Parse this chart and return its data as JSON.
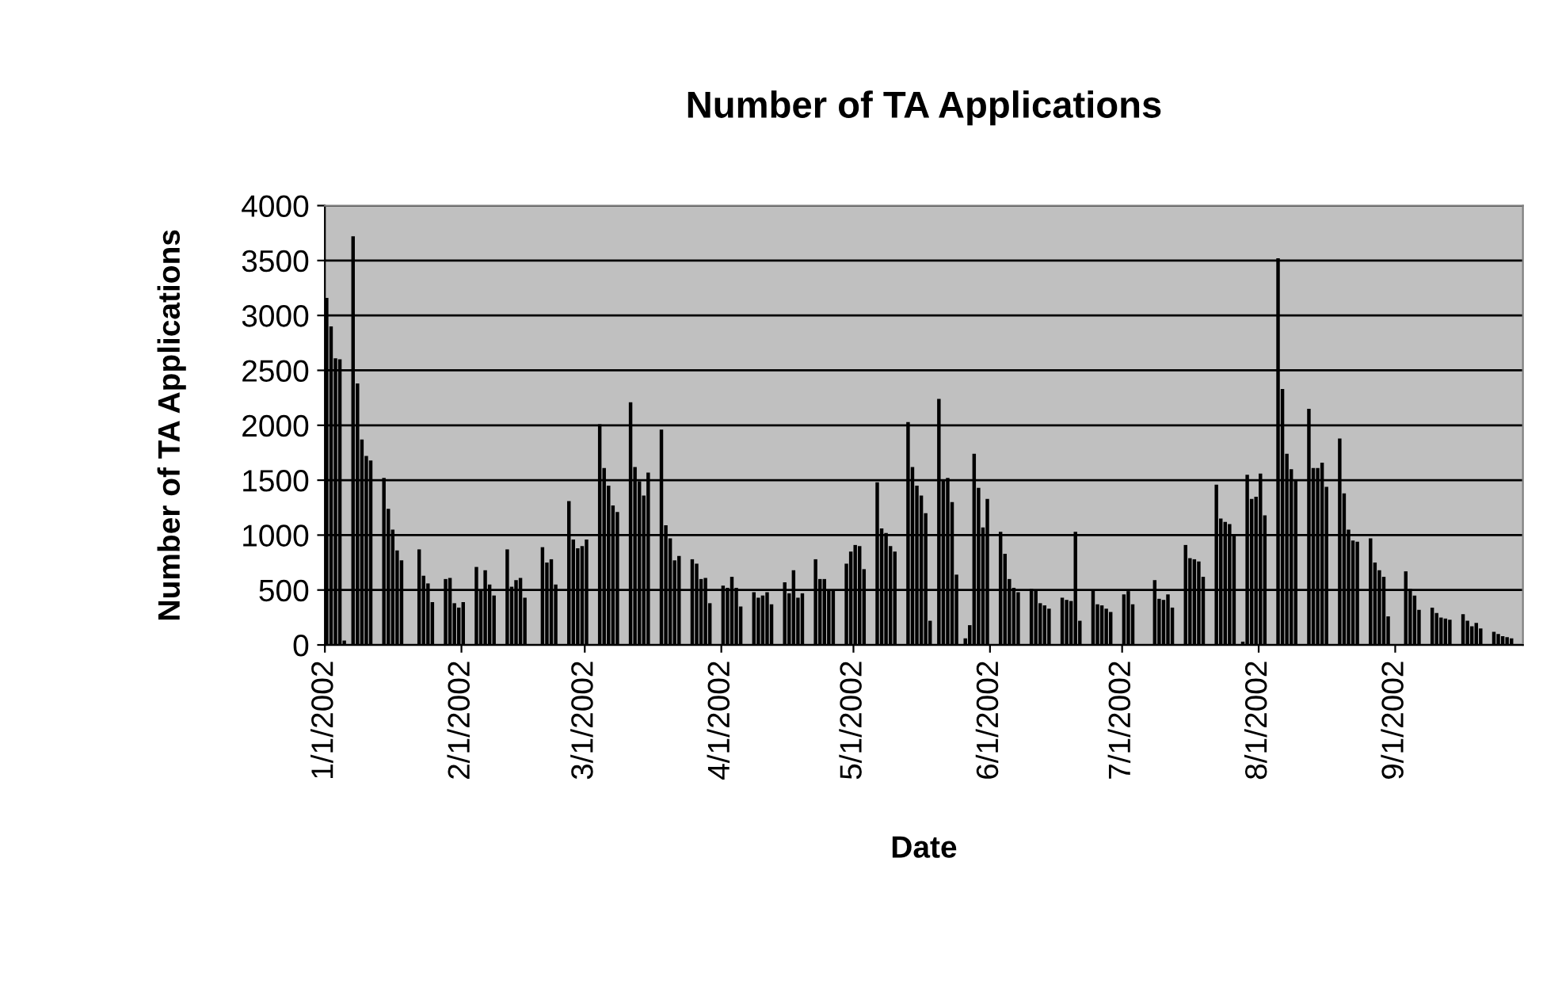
{
  "chart_data": {
    "type": "bar",
    "title": "Number of TA Applications",
    "xlabel": "Date",
    "ylabel": "Number of TA Applications",
    "series": [
      {
        "color": "#000000",
        "x": [
          "2002-01-01",
          "2002-01-02",
          "2002-01-03",
          "2002-01-04",
          "2002-01-05",
          "2002-01-07",
          "2002-01-08",
          "2002-01-09",
          "2002-01-10",
          "2002-01-11",
          "2002-01-14",
          "2002-01-15",
          "2002-01-16",
          "2002-01-17",
          "2002-01-18",
          "2002-01-21",
          "2002-01-22",
          "2002-01-23",
          "2002-01-24",
          "2002-01-25",
          "2002-01-28",
          "2002-01-29",
          "2002-01-30",
          "2002-01-31",
          "2002-02-01",
          "2002-02-04",
          "2002-02-05",
          "2002-02-06",
          "2002-02-07",
          "2002-02-08",
          "2002-02-11",
          "2002-02-12",
          "2002-02-13",
          "2002-02-14",
          "2002-02-15",
          "2002-02-19",
          "2002-02-20",
          "2002-02-21",
          "2002-02-22",
          "2002-02-25",
          "2002-02-26",
          "2002-02-27",
          "2002-02-28",
          "2002-03-01",
          "2002-03-04",
          "2002-03-05",
          "2002-03-06",
          "2002-03-07",
          "2002-03-08",
          "2002-03-11",
          "2002-03-12",
          "2002-03-13",
          "2002-03-14",
          "2002-03-15",
          "2002-03-18",
          "2002-03-19",
          "2002-03-20",
          "2002-03-21",
          "2002-03-22",
          "2002-03-25",
          "2002-03-26",
          "2002-03-27",
          "2002-03-28",
          "2002-03-29",
          "2002-04-01",
          "2002-04-02",
          "2002-04-03",
          "2002-04-04",
          "2002-04-05",
          "2002-04-08",
          "2002-04-09",
          "2002-04-10",
          "2002-04-11",
          "2002-04-12",
          "2002-04-15",
          "2002-04-16",
          "2002-04-17",
          "2002-04-18",
          "2002-04-19",
          "2002-04-22",
          "2002-04-23",
          "2002-04-24",
          "2002-04-25",
          "2002-04-26",
          "2002-04-29",
          "2002-04-30",
          "2002-05-01",
          "2002-05-02",
          "2002-05-03",
          "2002-05-06",
          "2002-05-07",
          "2002-05-08",
          "2002-05-09",
          "2002-05-10",
          "2002-05-13",
          "2002-05-14",
          "2002-05-15",
          "2002-05-16",
          "2002-05-17",
          "2002-05-18",
          "2002-05-20",
          "2002-05-21",
          "2002-05-22",
          "2002-05-23",
          "2002-05-24",
          "2002-05-26",
          "2002-05-27",
          "2002-05-28",
          "2002-05-29",
          "2002-05-30",
          "2002-05-31",
          "2002-06-03",
          "2002-06-04",
          "2002-06-05",
          "2002-06-06",
          "2002-06-07",
          "2002-06-10",
          "2002-06-11",
          "2002-06-12",
          "2002-06-13",
          "2002-06-14",
          "2002-06-17",
          "2002-06-18",
          "2002-06-19",
          "2002-06-20",
          "2002-06-21",
          "2002-06-24",
          "2002-06-25",
          "2002-06-26",
          "2002-06-27",
          "2002-06-28",
          "2002-07-01",
          "2002-07-02",
          "2002-07-03",
          "2002-07-04",
          "2002-07-05",
          "2002-07-08",
          "2002-07-09",
          "2002-07-10",
          "2002-07-11",
          "2002-07-12",
          "2002-07-15",
          "2002-07-16",
          "2002-07-17",
          "2002-07-18",
          "2002-07-19",
          "2002-07-22",
          "2002-07-23",
          "2002-07-24",
          "2002-07-25",
          "2002-07-26",
          "2002-07-28",
          "2002-07-29",
          "2002-07-30",
          "2002-07-31",
          "2002-08-01",
          "2002-08-02",
          "2002-08-05",
          "2002-08-06",
          "2002-08-07",
          "2002-08-08",
          "2002-08-09",
          "2002-08-12",
          "2002-08-13",
          "2002-08-14",
          "2002-08-15",
          "2002-08-16",
          "2002-08-19",
          "2002-08-20",
          "2002-08-21",
          "2002-08-22",
          "2002-08-23",
          "2002-08-26",
          "2002-08-27",
          "2002-08-28",
          "2002-08-29",
          "2002-08-30",
          "2002-09-03",
          "2002-09-04",
          "2002-09-05",
          "2002-09-06",
          "2002-09-09",
          "2002-09-10",
          "2002-09-11",
          "2002-09-12",
          "2002-09-13",
          "2002-09-16",
          "2002-09-17",
          "2002-09-18",
          "2002-09-19",
          "2002-09-20",
          "2002-09-23",
          "2002-09-24",
          "2002-09-25",
          "2002-09-26",
          "2002-09-27"
        ],
        "values": [
          3160,
          2900,
          2610,
          2600,
          40,
          3720,
          2380,
          1870,
          1720,
          1680,
          1520,
          1240,
          1050,
          860,
          770,
          null,
          870,
          630,
          560,
          390,
          600,
          610,
          380,
          340,
          390,
          710,
          500,
          680,
          550,
          450,
          870,
          530,
          590,
          610,
          430,
          890,
          750,
          780,
          550,
          1310,
          960,
          880,
          900,
          960,
          2010,
          1610,
          1450,
          1270,
          1210,
          2210,
          1620,
          1490,
          1360,
          1570,
          1960,
          1090,
          970,
          770,
          810,
          780,
          740,
          600,
          610,
          380,
          540,
          520,
          620,
          520,
          350,
          480,
          430,
          450,
          480,
          370,
          570,
          470,
          680,
          430,
          470,
          780,
          600,
          600,
          500,
          500,
          740,
          850,
          910,
          900,
          690,
          1480,
          1060,
          1020,
          900,
          850,
          2030,
          1620,
          1450,
          1360,
          1200,
          220,
          2240,
          1500,
          1520,
          1300,
          640,
          60,
          180,
          1740,
          1430,
          1070,
          1330,
          1030,
          830,
          600,
          520,
          480,
          510,
          500,
          380,
          360,
          330,
          430,
          410,
          400,
          1030,
          220,
          500,
          370,
          360,
          330,
          300,
          460,
          490,
          370,
          null,
          null,
          590,
          420,
          410,
          460,
          340,
          910,
          790,
          780,
          760,
          620,
          1460,
          1150,
          1120,
          1100,
          1000,
          30,
          1550,
          1330,
          1350,
          1560,
          1180,
          3520,
          2330,
          1740,
          1600,
          1500,
          2150,
          1610,
          1610,
          1660,
          1440,
          1880,
          1380,
          1050,
          950,
          940,
          970,
          750,
          680,
          620,
          260,
          670,
          510,
          450,
          320,
          340,
          290,
          250,
          240,
          230,
          280,
          220,
          170,
          200,
          150,
          120,
          100,
          80,
          70,
          60
        ]
      }
    ],
    "xlim": [
      "2002-01-01",
      "2002-09-30"
    ],
    "xticks": [
      {
        "value": "2002-01-01",
        "label": "1/1/2002"
      },
      {
        "value": "2002-02-01",
        "label": "2/1/2002"
      },
      {
        "value": "2002-03-01",
        "label": "3/1/2002"
      },
      {
        "value": "2002-04-01",
        "label": "4/1/2002"
      },
      {
        "value": "2002-05-01",
        "label": "5/1/2002"
      },
      {
        "value": "2002-06-01",
        "label": "6/1/2002"
      },
      {
        "value": "2002-07-01",
        "label": "7/1/2002"
      },
      {
        "value": "2002-08-01",
        "label": "8/1/2002"
      },
      {
        "value": "2002-09-01",
        "label": "9/1/2002"
      }
    ],
    "ylim": [
      0,
      4000
    ],
    "yticks": [
      0,
      500,
      1000,
      1500,
      2000,
      2500,
      3000,
      3500,
      4000
    ],
    "grid": "y",
    "legend": false
  }
}
